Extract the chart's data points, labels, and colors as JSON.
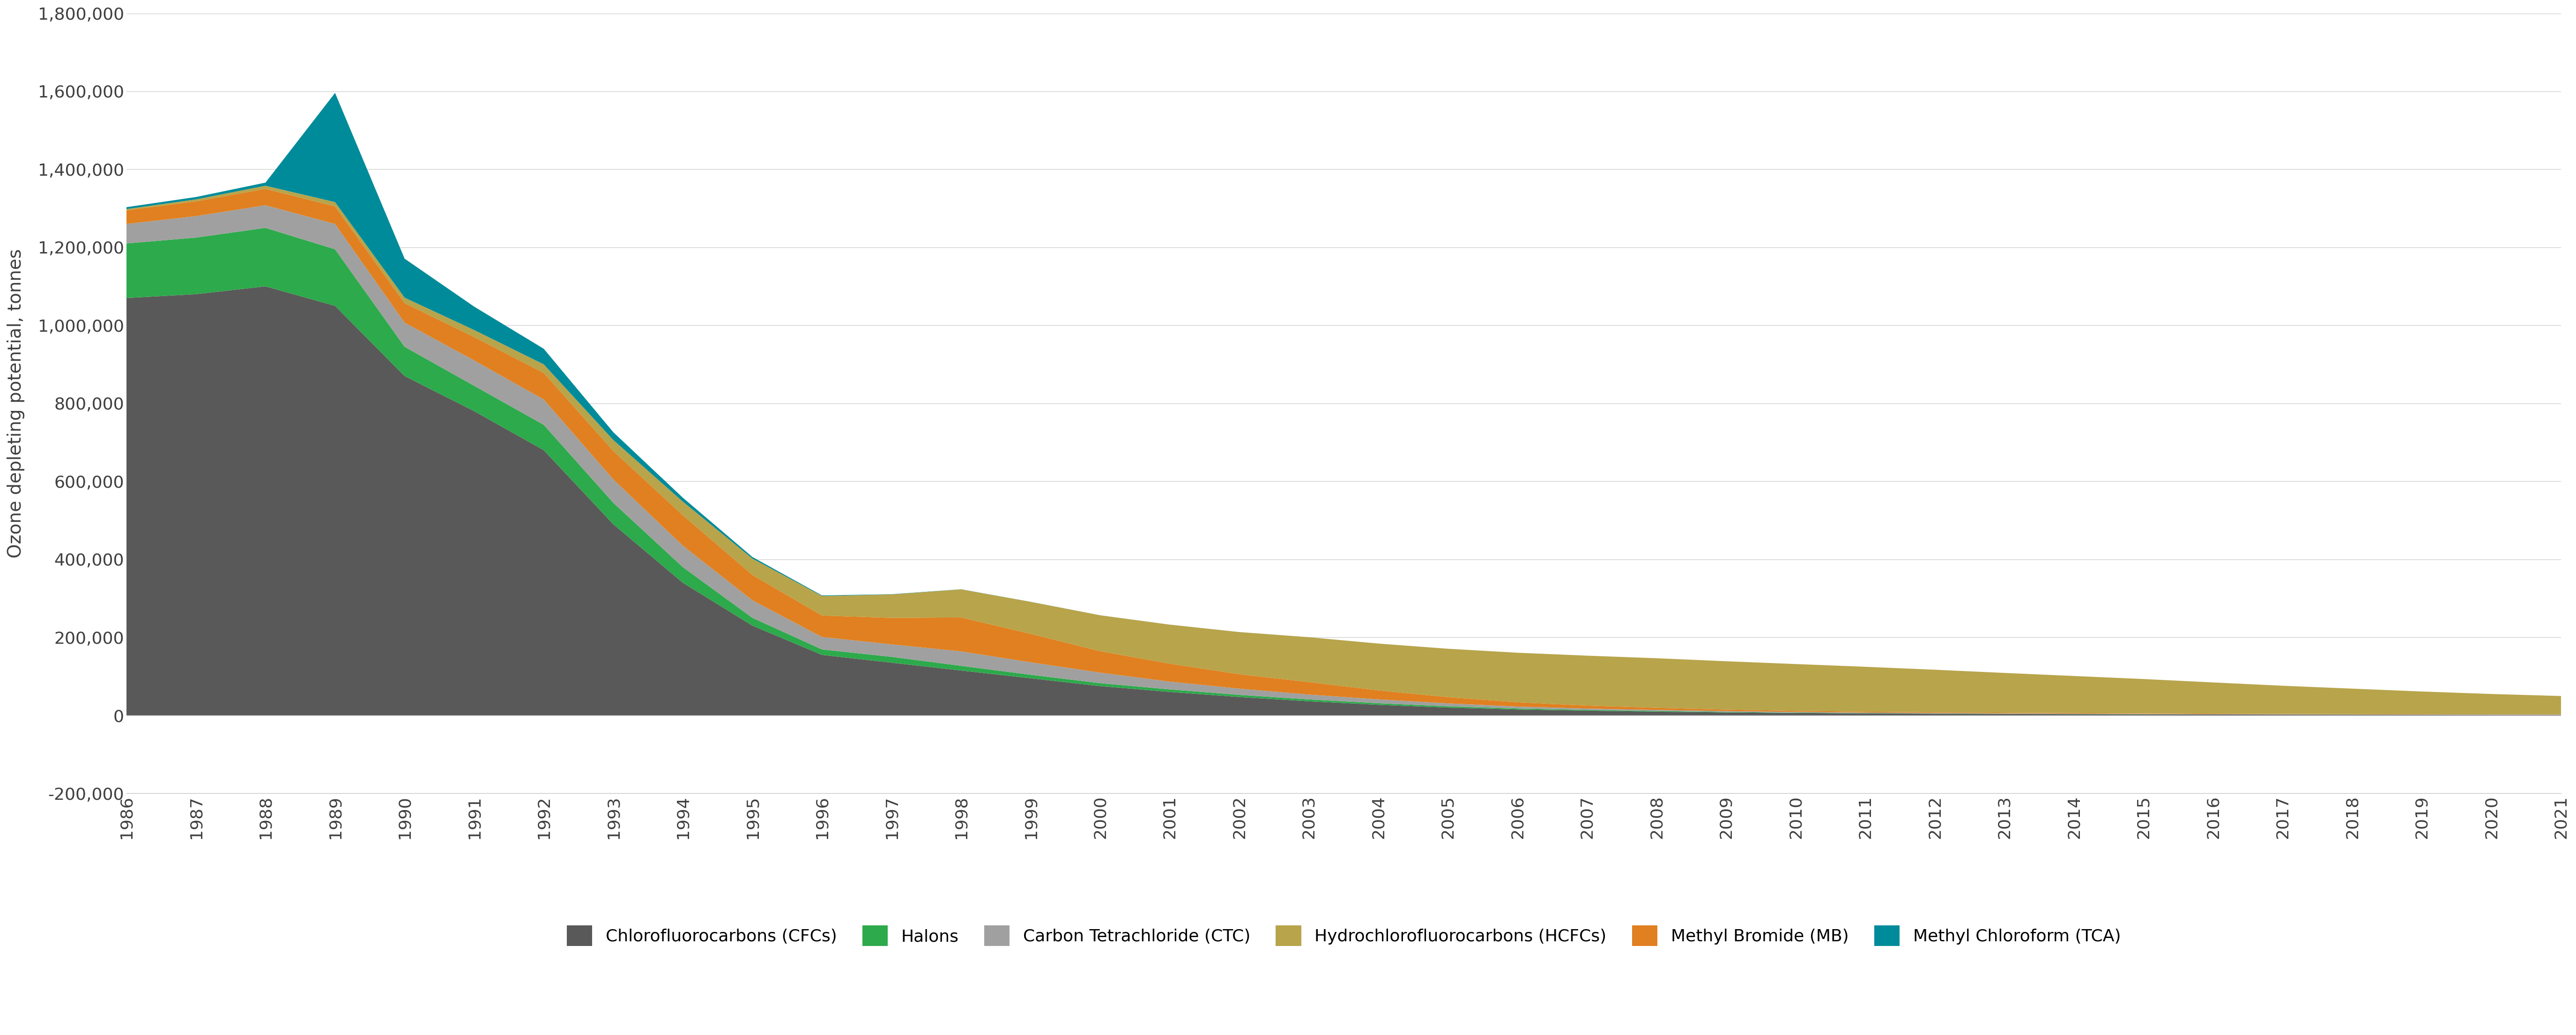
{
  "years": [
    1986,
    1987,
    1988,
    1989,
    1990,
    1991,
    1992,
    1993,
    1994,
    1995,
    1996,
    1997,
    1998,
    1999,
    2000,
    2001,
    2002,
    2003,
    2004,
    2005,
    2006,
    2007,
    2008,
    2009,
    2010,
    2011,
    2012,
    2013,
    2014,
    2015,
    2016,
    2017,
    2018,
    2019,
    2020,
    2021
  ],
  "CFCs": [
    1070000,
    1080000,
    1100000,
    1050000,
    870000,
    780000,
    680000,
    490000,
    340000,
    230000,
    155000,
    135000,
    115000,
    95000,
    75000,
    60000,
    47000,
    36000,
    27000,
    20000,
    15000,
    12000,
    9500,
    7500,
    6000,
    5000,
    4200,
    3500,
    3000,
    2600,
    2200,
    1900,
    1700,
    1500,
    1300,
    1200
  ],
  "Halons": [
    140000,
    145000,
    150000,
    145000,
    75000,
    65000,
    65000,
    55000,
    40000,
    20000,
    14000,
    15000,
    12000,
    9000,
    7500,
    6500,
    5500,
    4800,
    4000,
    3200,
    2500,
    2000,
    1700,
    1300,
    1000,
    800,
    650,
    550,
    480,
    400,
    350,
    300,
    260,
    230,
    200,
    180
  ],
  "CTC": [
    50000,
    55000,
    58000,
    65000,
    62000,
    65000,
    65000,
    60000,
    55000,
    45000,
    32000,
    32000,
    37000,
    32000,
    27000,
    20000,
    16000,
    12500,
    10000,
    7500,
    5000,
    3500,
    2700,
    2100,
    1700,
    1400,
    1200,
    1000,
    900,
    800,
    720,
    670,
    620,
    580,
    540,
    510
  ],
  "MB": [
    35000,
    38000,
    42000,
    45000,
    50000,
    60000,
    68000,
    73000,
    78000,
    65000,
    55000,
    68000,
    87000,
    73000,
    55000,
    46000,
    37000,
    32000,
    23000,
    16000,
    11000,
    7500,
    5500,
    3800,
    2800,
    2300,
    1900,
    1700,
    1500,
    1300,
    1100,
    1000,
    900,
    820,
    720,
    680
  ],
  "HCFCs": [
    3000,
    5000,
    8000,
    11000,
    14000,
    18000,
    22000,
    28000,
    35000,
    42000,
    50000,
    60000,
    72000,
    82000,
    92000,
    100000,
    108000,
    115000,
    120000,
    124000,
    127000,
    128000,
    127000,
    124000,
    120000,
    115000,
    109000,
    102000,
    95000,
    88000,
    80000,
    72000,
    65000,
    58000,
    52000,
    47000
  ],
  "TCA": [
    5000,
    6000,
    8000,
    280000,
    100000,
    60000,
    40000,
    20000,
    10000,
    4000,
    1500,
    600,
    300,
    150,
    100,
    80,
    60,
    50,
    40,
    30,
    25,
    20,
    15,
    12,
    10,
    8,
    7,
    6,
    5,
    5,
    4,
    4,
    3,
    3,
    2,
    2
  ],
  "colors": {
    "CFCs": "#595959",
    "Halons": "#2daa4b",
    "CTC": "#a0a0a0",
    "MB": "#e08020",
    "HCFCs": "#b8a44a",
    "TCA": "#008b9a"
  },
  "labels": {
    "CFCs": "Chlorofluorocarbons (CFCs)",
    "Halons": "Halons",
    "CTC": "Carbon Tetrachloride (CTC)",
    "HCFCs": "Hydrochlorofluorocarbons (HCFCs)",
    "MB": "Methyl Bromide (MB)",
    "TCA": "Methyl Chloroform (TCA)"
  },
  "ylabel": "Ozone depleting potential, tonnes",
  "ylim": [
    -200000,
    1800000
  ],
  "yticks": [
    -200000,
    0,
    200000,
    400000,
    600000,
    800000,
    1000000,
    1200000,
    1400000,
    1600000,
    1800000
  ],
  "background_color": "#ffffff",
  "grid_color": "#d0d0d0"
}
